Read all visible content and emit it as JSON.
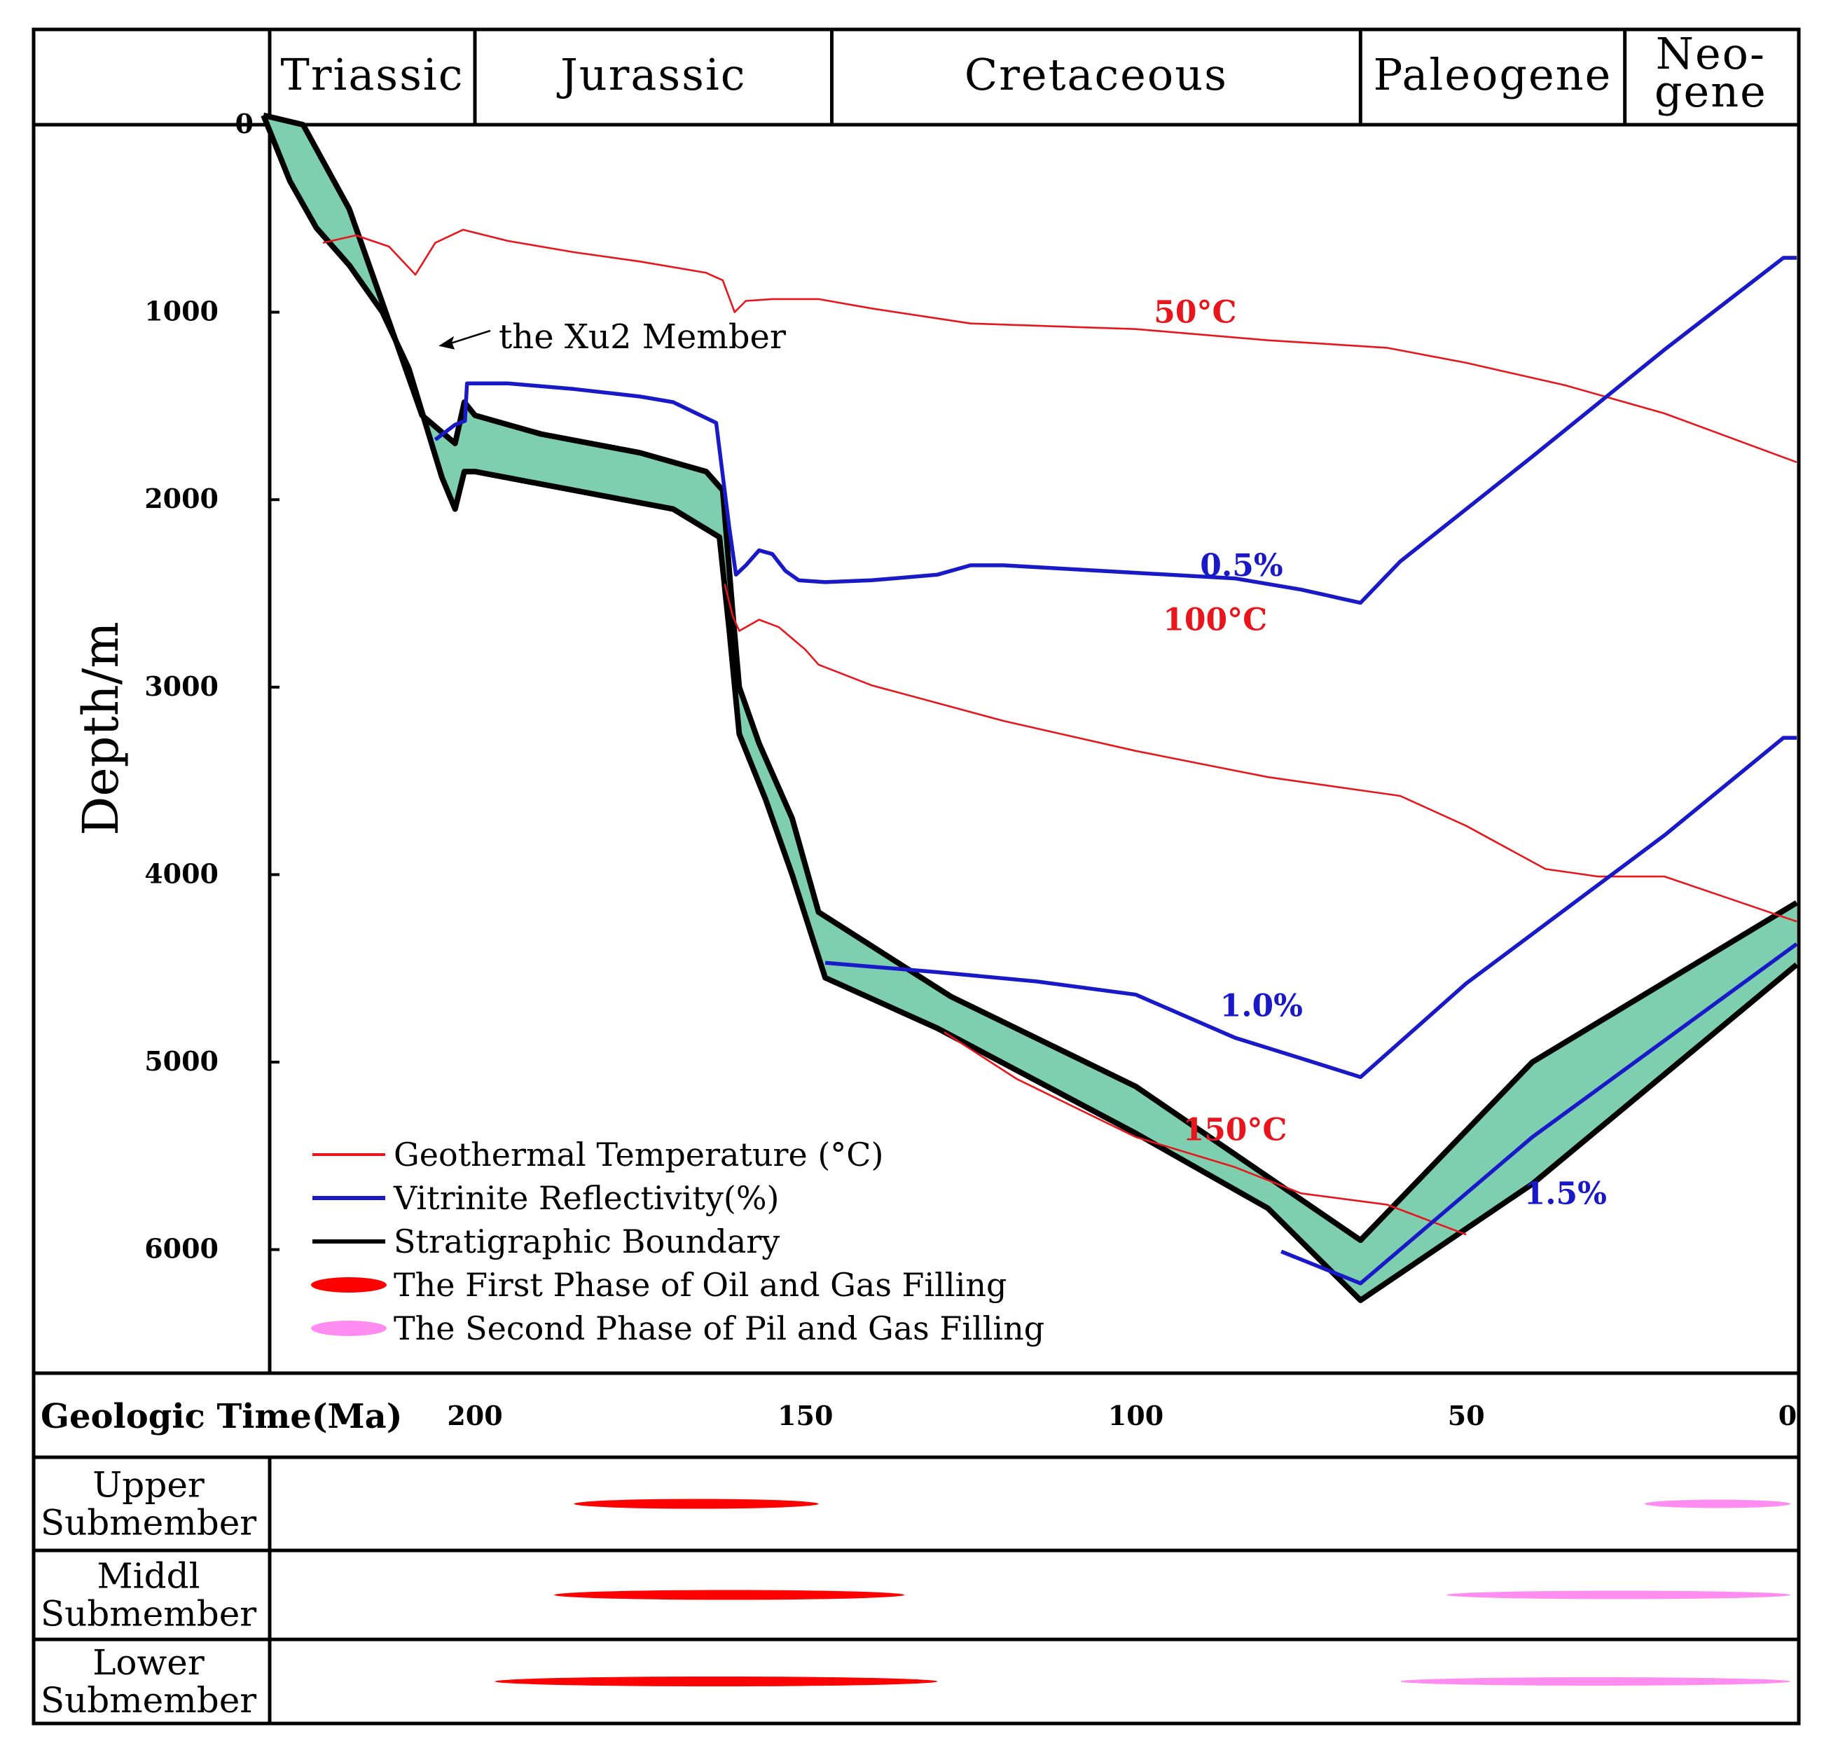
{
  "chart_data": {
    "type": "line",
    "xlabel": "Geologic Time(Ma)",
    "ylabel": "Depth/m",
    "xlim": [
      232,
      0
    ],
    "ylim": [
      0,
      6650
    ],
    "x_ticks": [
      "200",
      "150",
      "100",
      "50",
      "0"
    ],
    "y_ticks": [
      "0",
      "1000",
      "2000",
      "3000",
      "4000",
      "5000",
      "6000"
    ],
    "periods": [
      {
        "name": "Triassic",
        "start": 232,
        "end": 200
      },
      {
        "name": "Jurassic",
        "start": 200,
        "end": 146
      },
      {
        "name": "Cretaceous",
        "start": 146,
        "end": 66
      },
      {
        "name": "Paleogene",
        "start": 66,
        "end": 26
      },
      {
        "name": "Neo-",
        "name2": "gene",
        "start": 26,
        "end": 0
      }
    ],
    "colors": {
      "temperature": "#e8161c",
      "vitrinite": "#1919c8",
      "strata": "#000000",
      "fill": "#7ecfb0",
      "first_phase": "#ff0000",
      "second_phase": "#ff8cf0"
    },
    "xu2_member_upper": [
      [
        232,
        -50
      ],
      [
        226,
        0
      ],
      [
        219,
        450
      ],
      [
        215,
        850
      ],
      [
        212,
        1150
      ],
      [
        208,
        1550
      ],
      [
        203,
        1700
      ],
      [
        201.6,
        1480
      ],
      [
        200,
        1550
      ],
      [
        190,
        1650
      ],
      [
        175,
        1750
      ],
      [
        165,
        1850
      ],
      [
        162.5,
        1950
      ],
      [
        161,
        2600
      ],
      [
        160,
        3000
      ],
      [
        157,
        3300
      ],
      [
        152,
        3700
      ],
      [
        148,
        4200
      ],
      [
        128,
        4650
      ],
      [
        100,
        5130
      ],
      [
        66,
        5950
      ],
      [
        40,
        5000
      ],
      [
        0,
        4150
      ]
    ],
    "xu2_member_lower": [
      [
        232,
        -50
      ],
      [
        228,
        300
      ],
      [
        224,
        550
      ],
      [
        219,
        750
      ],
      [
        214,
        1000
      ],
      [
        210,
        1300
      ],
      [
        207,
        1650
      ],
      [
        205,
        1880
      ],
      [
        203,
        2050
      ],
      [
        201.6,
        1850
      ],
      [
        200,
        1850
      ],
      [
        185,
        1950
      ],
      [
        170,
        2050
      ],
      [
        163,
        2200
      ],
      [
        161.5,
        2700
      ],
      [
        160,
        3250
      ],
      [
        156,
        3600
      ],
      [
        152,
        4000
      ],
      [
        147,
        4550
      ],
      [
        130,
        4820
      ],
      [
        100,
        5380
      ],
      [
        80,
        5780
      ],
      [
        66,
        6270
      ],
      [
        40,
        5650
      ],
      [
        0,
        4480
      ]
    ],
    "series": [
      {
        "name": "Geothermal Temperature",
        "label": "50°C",
        "label_at": [
          91,
          1000
        ],
        "color": "#e8161c",
        "values": [
          [
            223,
            630
          ],
          [
            218,
            590
          ],
          [
            213,
            650
          ],
          [
            209,
            800
          ],
          [
            206,
            630
          ],
          [
            201.8,
            560
          ],
          [
            195,
            620
          ],
          [
            185,
            680
          ],
          [
            175,
            730
          ],
          [
            165,
            790
          ],
          [
            162.5,
            830
          ],
          [
            160.7,
            1000
          ],
          [
            159,
            940
          ],
          [
            155,
            930
          ],
          [
            148,
            930
          ],
          [
            140,
            980
          ],
          [
            125,
            1060
          ],
          [
            100,
            1090
          ],
          [
            80,
            1150
          ],
          [
            62,
            1190
          ],
          [
            50,
            1270
          ],
          [
            35,
            1390
          ],
          [
            20,
            1540
          ],
          [
            0,
            1800
          ]
        ]
      },
      {
        "name": "Geothermal Temperature",
        "label": "100°C",
        "label_at": [
          88,
          2640
        ],
        "color": "#e8161c",
        "values": [
          [
            162.2,
            2450
          ],
          [
            161,
            2620
          ],
          [
            160,
            2700
          ],
          [
            157,
            2640
          ],
          [
            154,
            2680
          ],
          [
            150,
            2800
          ],
          [
            148,
            2880
          ],
          [
            140,
            2990
          ],
          [
            120,
            3180
          ],
          [
            100,
            3340
          ],
          [
            80,
            3480
          ],
          [
            66,
            3550
          ],
          [
            60,
            3580
          ],
          [
            50,
            3740
          ],
          [
            38,
            3970
          ],
          [
            30,
            4010
          ],
          [
            20,
            4010
          ],
          [
            10,
            4130
          ],
          [
            0,
            4250
          ]
        ]
      },
      {
        "name": "Geothermal Temperature",
        "label": "150°C",
        "label_at": [
          85,
          5360
        ],
        "color": "#e8161c",
        "values": [
          [
            129,
            4840
          ],
          [
            118,
            5090
          ],
          [
            100,
            5400
          ],
          [
            85,
            5560
          ],
          [
            75,
            5700
          ],
          [
            62,
            5760
          ],
          [
            56,
            5840
          ],
          [
            50,
            5920
          ]
        ]
      },
      {
        "name": "Vitrinite Reflectivity",
        "label": "0.5%",
        "label_at": [
          84,
          2350
        ],
        "color": "#1919c8",
        "values": [
          [
            206,
            1680
          ],
          [
            203,
            1600
          ],
          [
            201.5,
            1580
          ],
          [
            201.2,
            1380
          ],
          [
            195,
            1380
          ],
          [
            185,
            1410
          ],
          [
            175,
            1450
          ],
          [
            170,
            1480
          ],
          [
            163.5,
            1590
          ],
          [
            161.5,
            2150
          ],
          [
            160.5,
            2400
          ],
          [
            159,
            2350
          ],
          [
            157,
            2270
          ],
          [
            155,
            2290
          ],
          [
            153,
            2380
          ],
          [
            151,
            2430
          ],
          [
            147,
            2440
          ],
          [
            140,
            2430
          ],
          [
            130,
            2400
          ],
          [
            125,
            2350
          ],
          [
            120,
            2350
          ],
          [
            110,
            2370
          ],
          [
            100,
            2390
          ],
          [
            85,
            2420
          ],
          [
            75,
            2480
          ],
          [
            66,
            2550
          ],
          [
            60,
            2330
          ],
          [
            40,
            1770
          ],
          [
            20,
            1200
          ],
          [
            2,
            710
          ],
          [
            0,
            710
          ]
        ]
      },
      {
        "name": "Vitrinite Reflectivity",
        "label": "1.0%",
        "label_at": [
          81,
          4700
        ],
        "color": "#1919c8",
        "values": [
          [
            147,
            4470
          ],
          [
            130,
            4520
          ],
          [
            115,
            4570
          ],
          [
            100,
            4640
          ],
          [
            85,
            4870
          ],
          [
            75,
            4980
          ],
          [
            66,
            5080
          ],
          [
            50,
            4580
          ],
          [
            20,
            3790
          ],
          [
            2,
            3270
          ],
          [
            0,
            3270
          ]
        ]
      },
      {
        "name": "Vitrinite Reflectivity",
        "label": "1.5%",
        "label_at": [
          35,
          5700
        ],
        "color": "#1919c8",
        "values": [
          [
            78,
            6010
          ],
          [
            66,
            6180
          ],
          [
            40,
            5400
          ],
          [
            0,
            4370
          ]
        ]
      }
    ],
    "legend": [
      {
        "label": "Geothermal  Temperature (°C)",
        "kind": "line",
        "color": "#e8161c"
      },
      {
        "label": "Vitrinite Reflectivity(%)",
        "kind": "line",
        "color": "#1919c8"
      },
      {
        "label": "Stratigraphic Boundary",
        "kind": "line",
        "color": "#000000"
      },
      {
        "label": "The First Phase of Oil and Gas Filling",
        "kind": "ellipse",
        "color": "#ff0000"
      },
      {
        "label": "The Second Phase of Pil and Gas Filling",
        "kind": "ellipse",
        "color": "#ff8cf0"
      }
    ],
    "annotation": "the  Xu2 Member",
    "filling_rows": [
      {
        "line1": "Upper",
        "line2": "Submember",
        "first": [
          185,
          148
        ],
        "second": [
          23,
          0
        ]
      },
      {
        "line1": "Middl",
        "line2": "Submember",
        "first": [
          188,
          135
        ],
        "second": [
          53,
          0
        ]
      },
      {
        "line1": "Lower",
        "line2": "Submember",
        "first": [
          197,
          130
        ],
        "second": [
          60,
          0
        ]
      }
    ]
  }
}
